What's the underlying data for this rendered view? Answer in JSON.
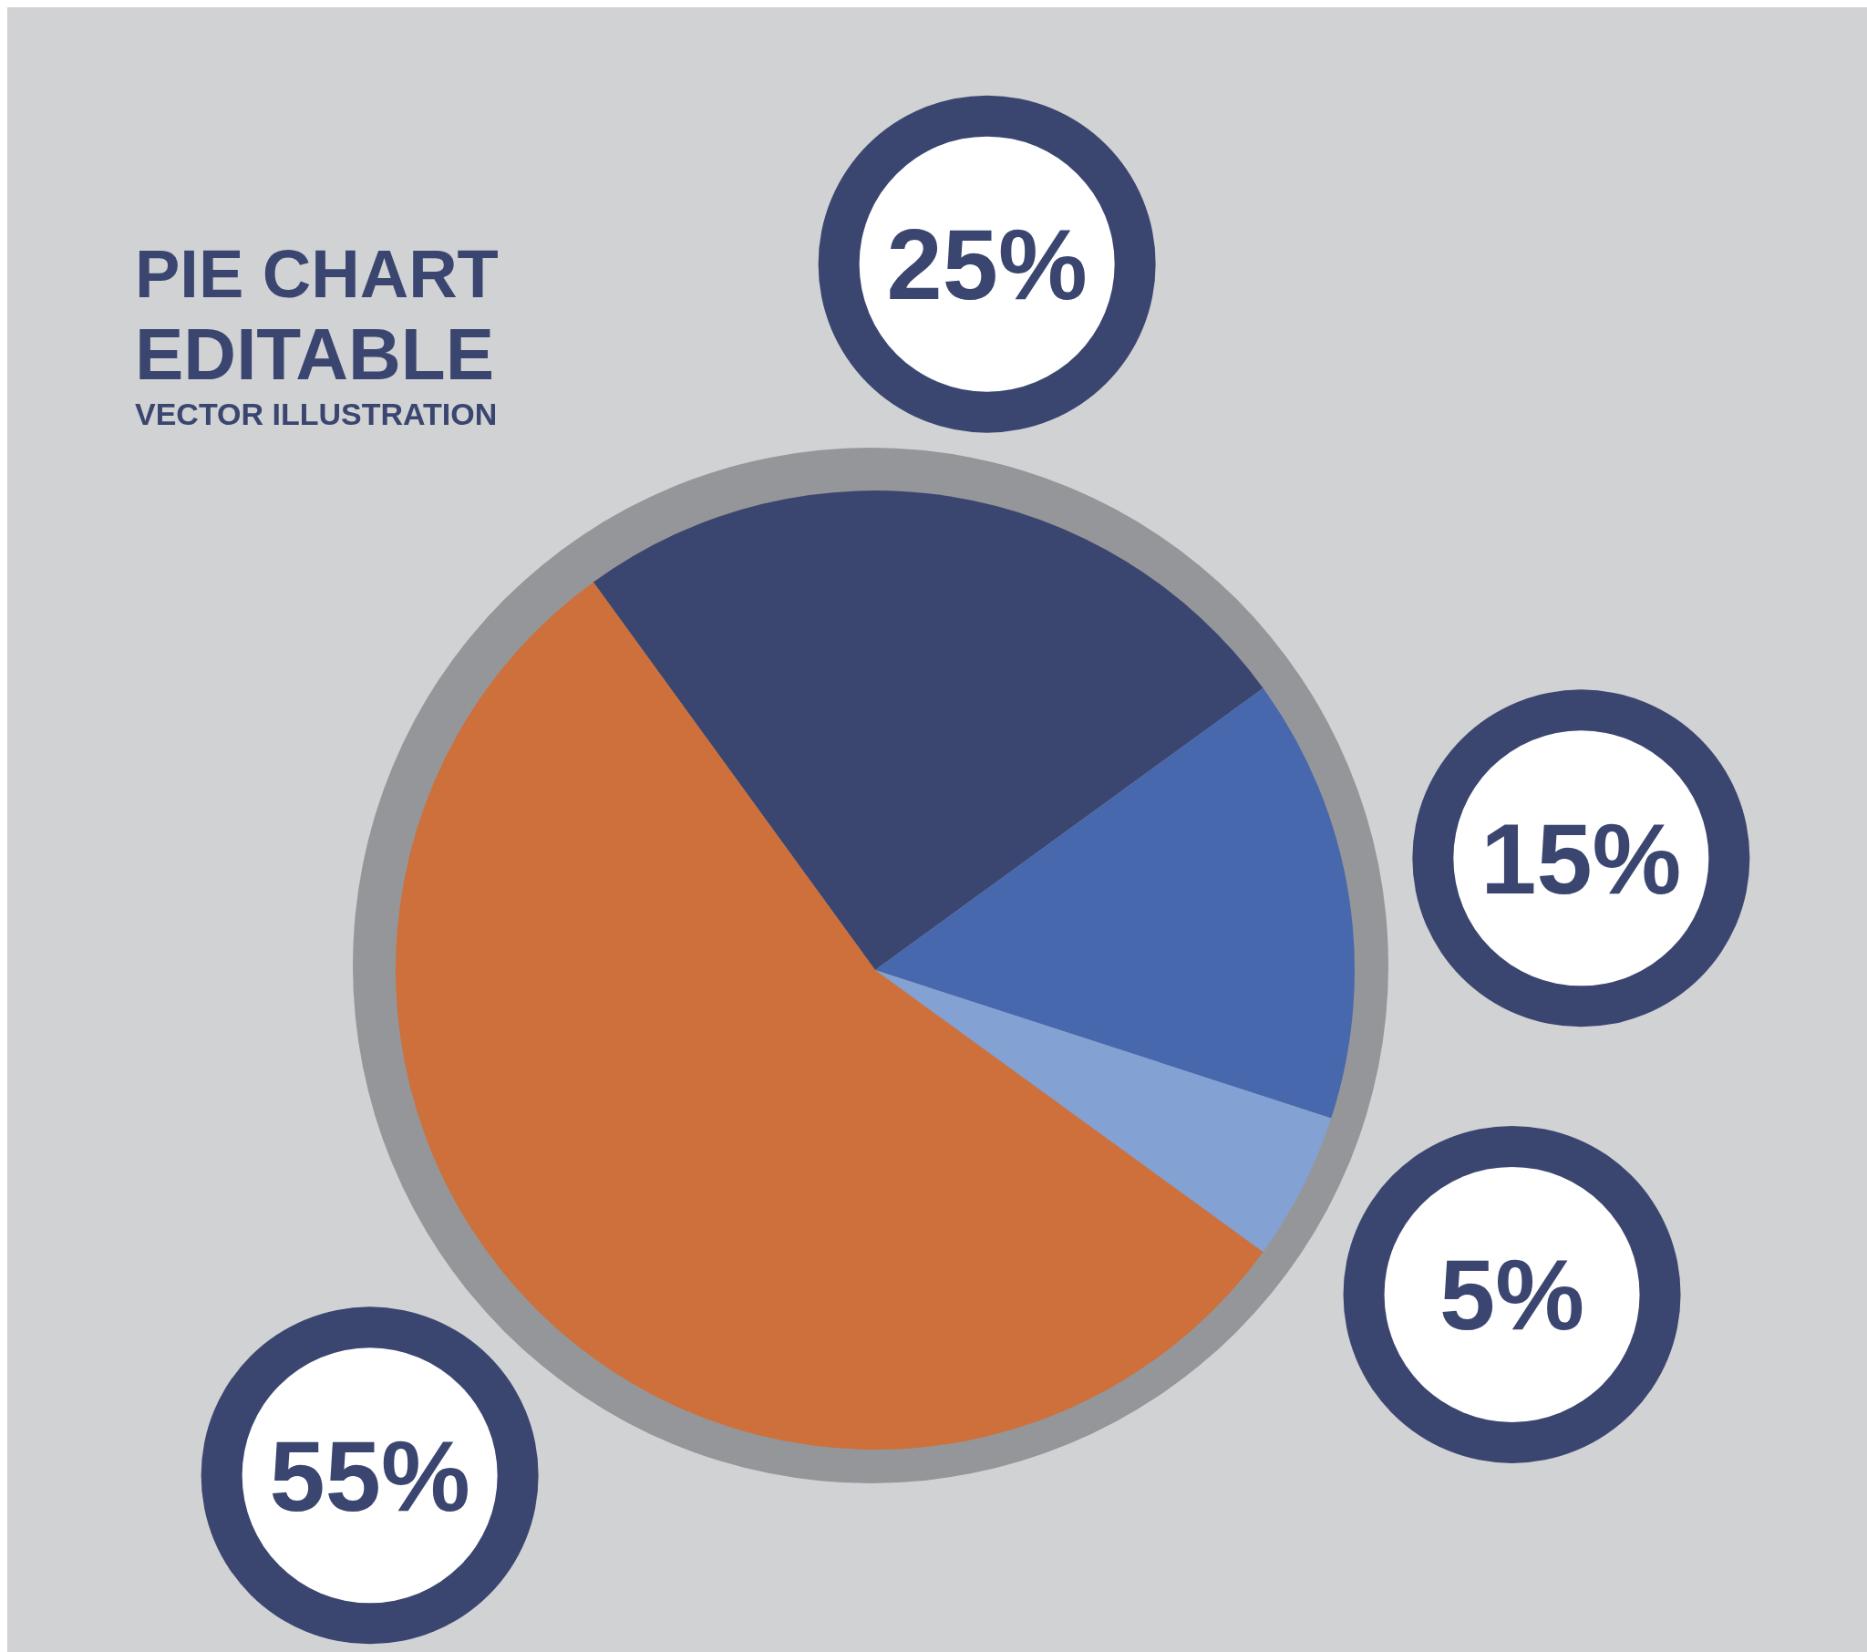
{
  "chart_data": {
    "type": "pie",
    "title": "PIE CHART",
    "subtitle": "EDITABLE",
    "annotations": [
      "VECTOR ILLUSTRATION"
    ],
    "categories": [
      null,
      null,
      null,
      null
    ],
    "values": [
      25,
      15,
      5,
      55
    ],
    "colors": [
      "#3b4670",
      "#4868ae",
      "#84a1d4",
      "#cd703b"
    ],
    "value_labels": [
      "25%",
      "15%",
      "5%",
      "55%"
    ],
    "legend": false
  }
}
